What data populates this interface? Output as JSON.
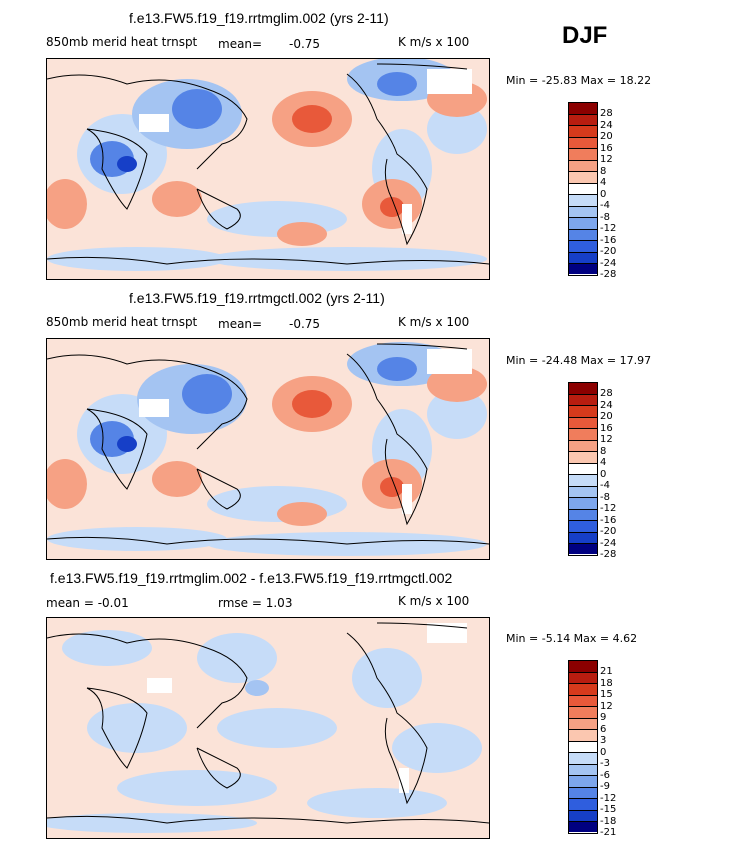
{
  "season": "DJF",
  "panels": [
    {
      "title": "f.e13.FW5.f19_f19.rrtmglim.002 (yrs 2-11)",
      "left_label": "850mb merid heat trnspt",
      "mean_label": "mean=",
      "mean_value": "-0.75",
      "units": "K m/s x 100",
      "stats": "Min = -25.83 Max = 18.22",
      "levels": [
        "28",
        "24",
        "20",
        "16",
        "12",
        "8",
        "4",
        "0",
        "-4",
        "-8",
        "-12",
        "-16",
        "-20",
        "-24",
        "-28"
      ]
    },
    {
      "title": "f.e13.FW5.f19_f19.rrtmgctl.002 (yrs 2-11)",
      "left_label": "850mb merid heat trnspt",
      "mean_label": "mean=",
      "mean_value": "-0.75",
      "units": "K m/s x 100",
      "stats": "Min = -24.48 Max = 17.97",
      "levels": [
        "28",
        "24",
        "20",
        "16",
        "12",
        "8",
        "4",
        "0",
        "-4",
        "-8",
        "-12",
        "-16",
        "-20",
        "-24",
        "-28"
      ]
    },
    {
      "title": "f.e13.FW5.f19_f19.rrtmglim.002 - f.e13.FW5.f19_f19.rrtmgctl.002",
      "mean_text": "mean = -0.01",
      "rmse_text": "rmse = 1.03",
      "units": "K m/s x 100",
      "stats": "Min = -5.14 Max = 4.62",
      "levels": [
        "21",
        "18",
        "15",
        "12",
        "9",
        "6",
        "3",
        "0",
        "-3",
        "-6",
        "-9",
        "-12",
        "-15",
        "-18",
        "-21"
      ]
    }
  ],
  "colors": {
    "scale": [
      "#8b0000",
      "#b81d10",
      "#d63a1c",
      "#e8593a",
      "#f07d5c",
      "#f6a184",
      "#fbc7b0",
      "#ffffff",
      "#c6dcf8",
      "#a4c4f2",
      "#7da6ec",
      "#5584e6",
      "#2f5ede",
      "#163fc7",
      "#0a1f9a",
      "#000080"
    ],
    "background_map": "#fbe3d8",
    "positive_light": "#fbc7b0",
    "negative_light": "#c6dcf8"
  }
}
